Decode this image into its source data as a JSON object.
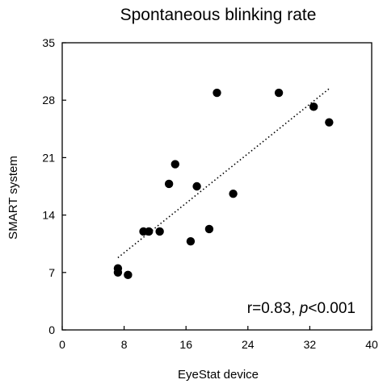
{
  "chart_data": {
    "type": "scatter",
    "title": "Spontaneous blinking rate",
    "xlabel": "EyeStat device",
    "ylabel": "SMART system",
    "xlim": [
      0,
      40
    ],
    "ylim": [
      0,
      35
    ],
    "xticks": [
      0,
      8,
      16,
      24,
      32,
      40
    ],
    "yticks": [
      0,
      7,
      14,
      21,
      28,
      35
    ],
    "grid": false,
    "legend": "none",
    "annotation": {
      "r_text": "r=0.83, ",
      "p_symbol": "p",
      "p_text": "<0.001"
    },
    "series": [
      {
        "points": [
          {
            "x": 7.2,
            "y": 7.5
          },
          {
            "x": 7.2,
            "y": 7.0
          },
          {
            "x": 8.5,
            "y": 6.7
          },
          {
            "x": 10.5,
            "y": 12.0
          },
          {
            "x": 11.2,
            "y": 12.0
          },
          {
            "x": 12.6,
            "y": 12.0
          },
          {
            "x": 13.8,
            "y": 17.8
          },
          {
            "x": 14.6,
            "y": 20.2
          },
          {
            "x": 16.6,
            "y": 10.8
          },
          {
            "x": 17.4,
            "y": 17.5
          },
          {
            "x": 19.0,
            "y": 12.3
          },
          {
            "x": 20.0,
            "y": 28.9
          },
          {
            "x": 22.1,
            "y": 16.6
          },
          {
            "x": 28.0,
            "y": 28.9
          },
          {
            "x": 32.5,
            "y": 27.2
          },
          {
            "x": 34.5,
            "y": 25.3
          }
        ]
      }
    ],
    "trendline": {
      "style": "dotted",
      "x": [
        7.2,
        34.5
      ],
      "y": [
        8.8,
        29.4
      ]
    },
    "colors": {
      "points": "#000000",
      "axes": "#000000"
    }
  }
}
